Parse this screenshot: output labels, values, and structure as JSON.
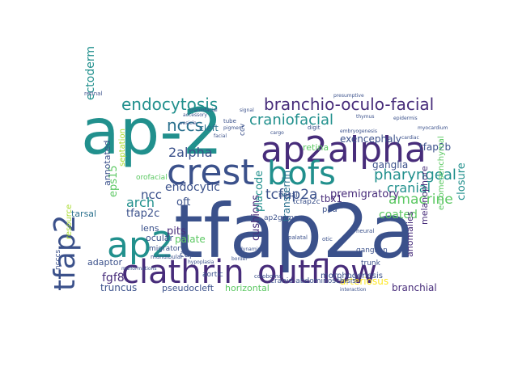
{
  "palette": {
    "dark_purple": "#472c7a",
    "indigo": "#3b518b",
    "blue": "#2c718e",
    "teal": "#21908d",
    "green_teal": "#27ad81",
    "green": "#5cc863",
    "yellow_green": "#aadc32",
    "yellow": "#fde725"
  },
  "words": [
    {
      "text": "tfap2a",
      "color": "#3b518b"
    },
    {
      "text": "ap-2",
      "color": "#21908d"
    },
    {
      "text": "ap2alpha",
      "color": "#472c7a"
    },
    {
      "text": "clathrin",
      "color": "#472c7a"
    },
    {
      "text": "outflow",
      "color": "#472c7a"
    },
    {
      "text": "crest",
      "color": "#3b518b"
    },
    {
      "text": "bofs",
      "color": "#21908d"
    },
    {
      "text": "ap2",
      "color": "#21908d"
    },
    {
      "text": "tfap2",
      "color": "#3b518b"
    },
    {
      "text": "branchio-oculo-facial",
      "color": "#472c7a"
    },
    {
      "text": "endocytosis",
      "color": "#21908d"
    },
    {
      "text": "pharyngeal",
      "color": "#21908d"
    },
    {
      "text": "nccs",
      "color": "#2c718e"
    },
    {
      "text": "craniofacial",
      "color": "#21908d"
    },
    {
      "text": "2alpha",
      "color": "#3b518b"
    },
    {
      "text": "tcfap2a",
      "color": "#3b518b"
    },
    {
      "text": "amacrine",
      "color": "#5cc863"
    },
    {
      "text": "cranial",
      "color": "#21908d"
    },
    {
      "text": "ectoderm",
      "color": "#21908d"
    },
    {
      "text": "arch",
      "color": "#21908d"
    },
    {
      "text": "ncc",
      "color": "#3b518b"
    },
    {
      "text": "endocytic",
      "color": "#3b518b"
    },
    {
      "text": "coated",
      "color": "#5cc863"
    },
    {
      "text": "premigratory",
      "color": "#472c7a"
    },
    {
      "text": "tfap2c",
      "color": "#3b518b"
    },
    {
      "text": "oft",
      "color": "#3b518b"
    },
    {
      "text": "pits",
      "color": "#472c7a"
    },
    {
      "text": "palate",
      "color": "#5cc863"
    },
    {
      "text": "fgf8",
      "color": "#472c7a"
    },
    {
      "text": "cushions",
      "color": "#472c7a"
    },
    {
      "text": "placode",
      "color": "#21908d"
    },
    {
      "text": "eps15",
      "color": "#5cc863"
    },
    {
      "text": "tbx1",
      "color": "#472c7a"
    },
    {
      "text": "ganglia",
      "color": "#3b518b"
    },
    {
      "text": "exencephaly",
      "color": "#3b518b"
    },
    {
      "text": "tfap2b",
      "color": "#3b518b"
    },
    {
      "text": "closure",
      "color": "#21908d"
    },
    {
      "text": "retina",
      "color": "#5cc863"
    },
    {
      "text": "lens",
      "color": "#3b518b"
    },
    {
      "text": "cleft",
      "color": "#2c718e"
    },
    {
      "text": "ocular",
      "color": "#3b518b"
    },
    {
      "text": "annotated",
      "color": "#3b518b"
    },
    {
      "text": "septation",
      "color": "#aadc32"
    },
    {
      "text": "transferrin",
      "color": "#2c718e"
    },
    {
      "text": "tarsal",
      "color": "#2c718e"
    },
    {
      "text": "truncus",
      "color": "#3b518b"
    },
    {
      "text": "pseudocleft",
      "color": "#3b518b"
    },
    {
      "text": "horizontal",
      "color": "#5cc863"
    },
    {
      "text": "arteriosus",
      "color": "#fde725"
    },
    {
      "text": "branchial",
      "color": "#472c7a"
    },
    {
      "text": "adaptor",
      "color": "#3b518b"
    },
    {
      "text": "anomalies",
      "color": "#472c7a"
    },
    {
      "text": "melanophore",
      "color": "#472c7a"
    },
    {
      "text": "ectomesenchymal",
      "color": "#5cc863"
    },
    {
      "text": "cranio-abdominoschisis",
      "color": "#3b518b"
    },
    {
      "text": "morphogenesis",
      "color": "#3b518b"
    },
    {
      "text": "paa",
      "color": "#3b518b"
    },
    {
      "text": "resource",
      "color": "#aadc32"
    },
    {
      "text": "cup",
      "color": "#3b518b"
    },
    {
      "text": "aortic",
      "color": "#3b518b"
    },
    {
      "text": "migratory",
      "color": "#3b518b"
    },
    {
      "text": "ganglion",
      "color": "#3b518b"
    },
    {
      "text": "trunk",
      "color": "#3b518b"
    },
    {
      "text": "ncccs",
      "color": "#3b518b"
    },
    {
      "text": "ccv",
      "color": "#3b518b"
    },
    {
      "text": "nasal",
      "color": "#3b518b"
    },
    {
      "text": "orofacial",
      "color": "#5cc863"
    },
    {
      "text": "ap2gamma",
      "color": "#3b518b"
    },
    {
      "text": "tcfap2c",
      "color": "#3b518b"
    },
    {
      "text": "mandibular",
      "color": "#3b518b"
    },
    {
      "text": "coloboma",
      "color": "#3b518b"
    },
    {
      "text": "tube",
      "color": "#3b518b"
    },
    {
      "text": "accessory",
      "color": "#3b518b"
    },
    {
      "text": "retinal",
      "color": "#3b518b"
    },
    {
      "text": "otic",
      "color": "#3b518b"
    },
    {
      "text": "neural",
      "color": "#3b518b"
    },
    {
      "text": "digit",
      "color": "#3b518b"
    },
    {
      "text": "palatal",
      "color": "#3b518b"
    },
    {
      "text": "hypoplasia",
      "color": "#3b518b"
    },
    {
      "text": "malformations",
      "color": "#3b518b"
    },
    {
      "text": "interaction",
      "color": "#3b518b"
    },
    {
      "text": "signal",
      "color": "#3b518b"
    },
    {
      "text": "cargo",
      "color": "#3b518b"
    },
    {
      "text": "embryogenesis",
      "color": "#3b518b"
    },
    {
      "text": "presumptive",
      "color": "#3b518b"
    },
    {
      "text": "cardiac",
      "color": "#3b518b"
    },
    {
      "text": "myocardium",
      "color": "#3b518b"
    },
    {
      "text": "pigment",
      "color": "#3b518b"
    },
    {
      "text": "thymus",
      "color": "#3b518b"
    },
    {
      "text": "facial",
      "color": "#3b518b"
    },
    {
      "text": "epidermis",
      "color": "#3b518b"
    },
    {
      "text": "vesicle",
      "color": "#3b518b"
    },
    {
      "text": "border",
      "color": "#3b518b"
    },
    {
      "text": "dynamin",
      "color": "#3b518b"
    },
    {
      "text": "craniofacial",
      "color": "#3b518b"
    }
  ]
}
